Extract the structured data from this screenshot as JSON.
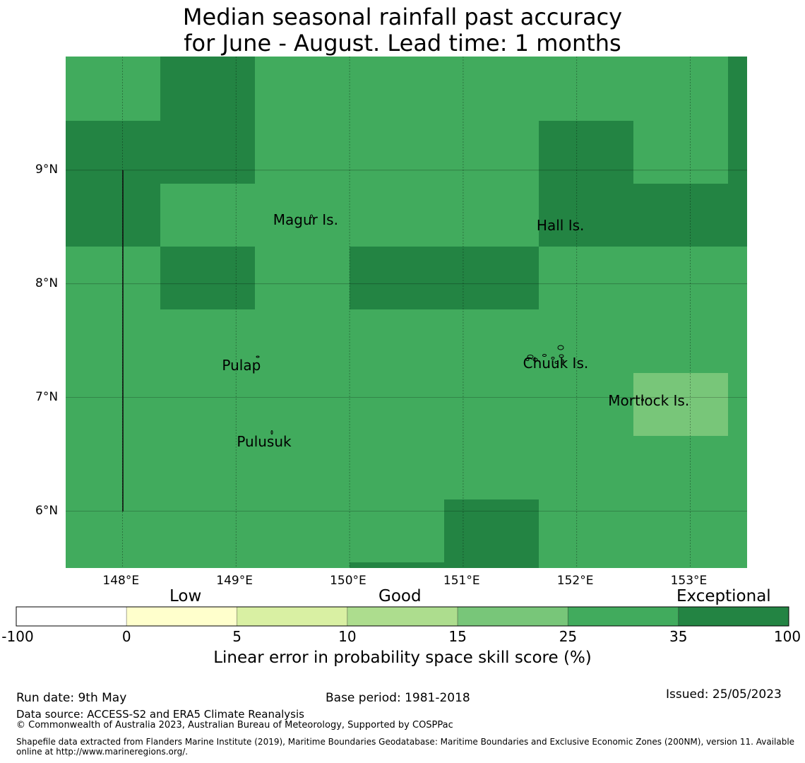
{
  "title_line1": "Median seasonal rainfall past accuracy",
  "title_line2": "for June - August. Lead time: 1 months",
  "map": {
    "lon_range": [
      147.5,
      153.5
    ],
    "lat_range": [
      5.5,
      10.0
    ],
    "grid": true,
    "colors": {
      "good_25_35": "#41ab5d",
      "exceptional_35_100": "#238443",
      "moderate_15_25": "#78c679"
    },
    "lat_ticks": [
      {
        "value": 9,
        "label": "9°N"
      },
      {
        "value": 8,
        "label": "8°N"
      },
      {
        "value": 7,
        "label": "7°N"
      },
      {
        "value": 6,
        "label": "6°N"
      }
    ],
    "lon_ticks": [
      {
        "value": 148,
        "label": "148°E"
      },
      {
        "value": 149,
        "label": "149°E"
      },
      {
        "value": 150,
        "label": "150°E"
      },
      {
        "value": 151,
        "label": "151°E"
      },
      {
        "value": 152,
        "label": "152°E"
      },
      {
        "value": 153,
        "label": "153°E"
      }
    ],
    "places": [
      {
        "name": "Magur Is.",
        "lon": 149.65,
        "lat": 8.55
      },
      {
        "name": "Hall Is.",
        "lon": 151.97,
        "lat": 8.5
      },
      {
        "name": "Pulap",
        "lon": 149.2,
        "lat": 7.27
      },
      {
        "name": "Chuuk Is.",
        "lon": 151.85,
        "lat": 7.29
      },
      {
        "name": "Mortlock Is.",
        "lon": 152.6,
        "lat": 6.96
      },
      {
        "name": "Pulusuk",
        "lon": 149.33,
        "lat": 6.6
      }
    ]
  },
  "colorbar": {
    "categories": [
      "Low",
      "Good",
      "Exceptional"
    ],
    "colors": [
      "#ffffff",
      "#ffffcc",
      "#d9f0a3",
      "#addd8e",
      "#78c679",
      "#41ab5d",
      "#238443"
    ],
    "ticks": [
      "-100",
      "0",
      "5",
      "10",
      "15",
      "25",
      "35",
      "100"
    ],
    "label": "Linear error in probability space skill score (%)"
  },
  "footer": {
    "run_date": "Run date: 9th May",
    "base_period": "Base period: 1981-2018",
    "issued": "Issued: 25/05/2023",
    "data_source": "Data source: ACCESS-S2 and ERA5 Climate Reanalysis",
    "copyright": "© Commonwealth of Australia 2023, Australian Bureau of Meteorology, Supported by COSPPac",
    "shapefile_line1": "Shapefile data extracted from Flanders Marine Institute (2019), Maritime Boundaries Geodatabase: Maritime Boundaries and Exclusive Economic Zones (200NM), version 11. Available",
    "shapefile_line2": "online at http://www.marineregions.org/."
  }
}
